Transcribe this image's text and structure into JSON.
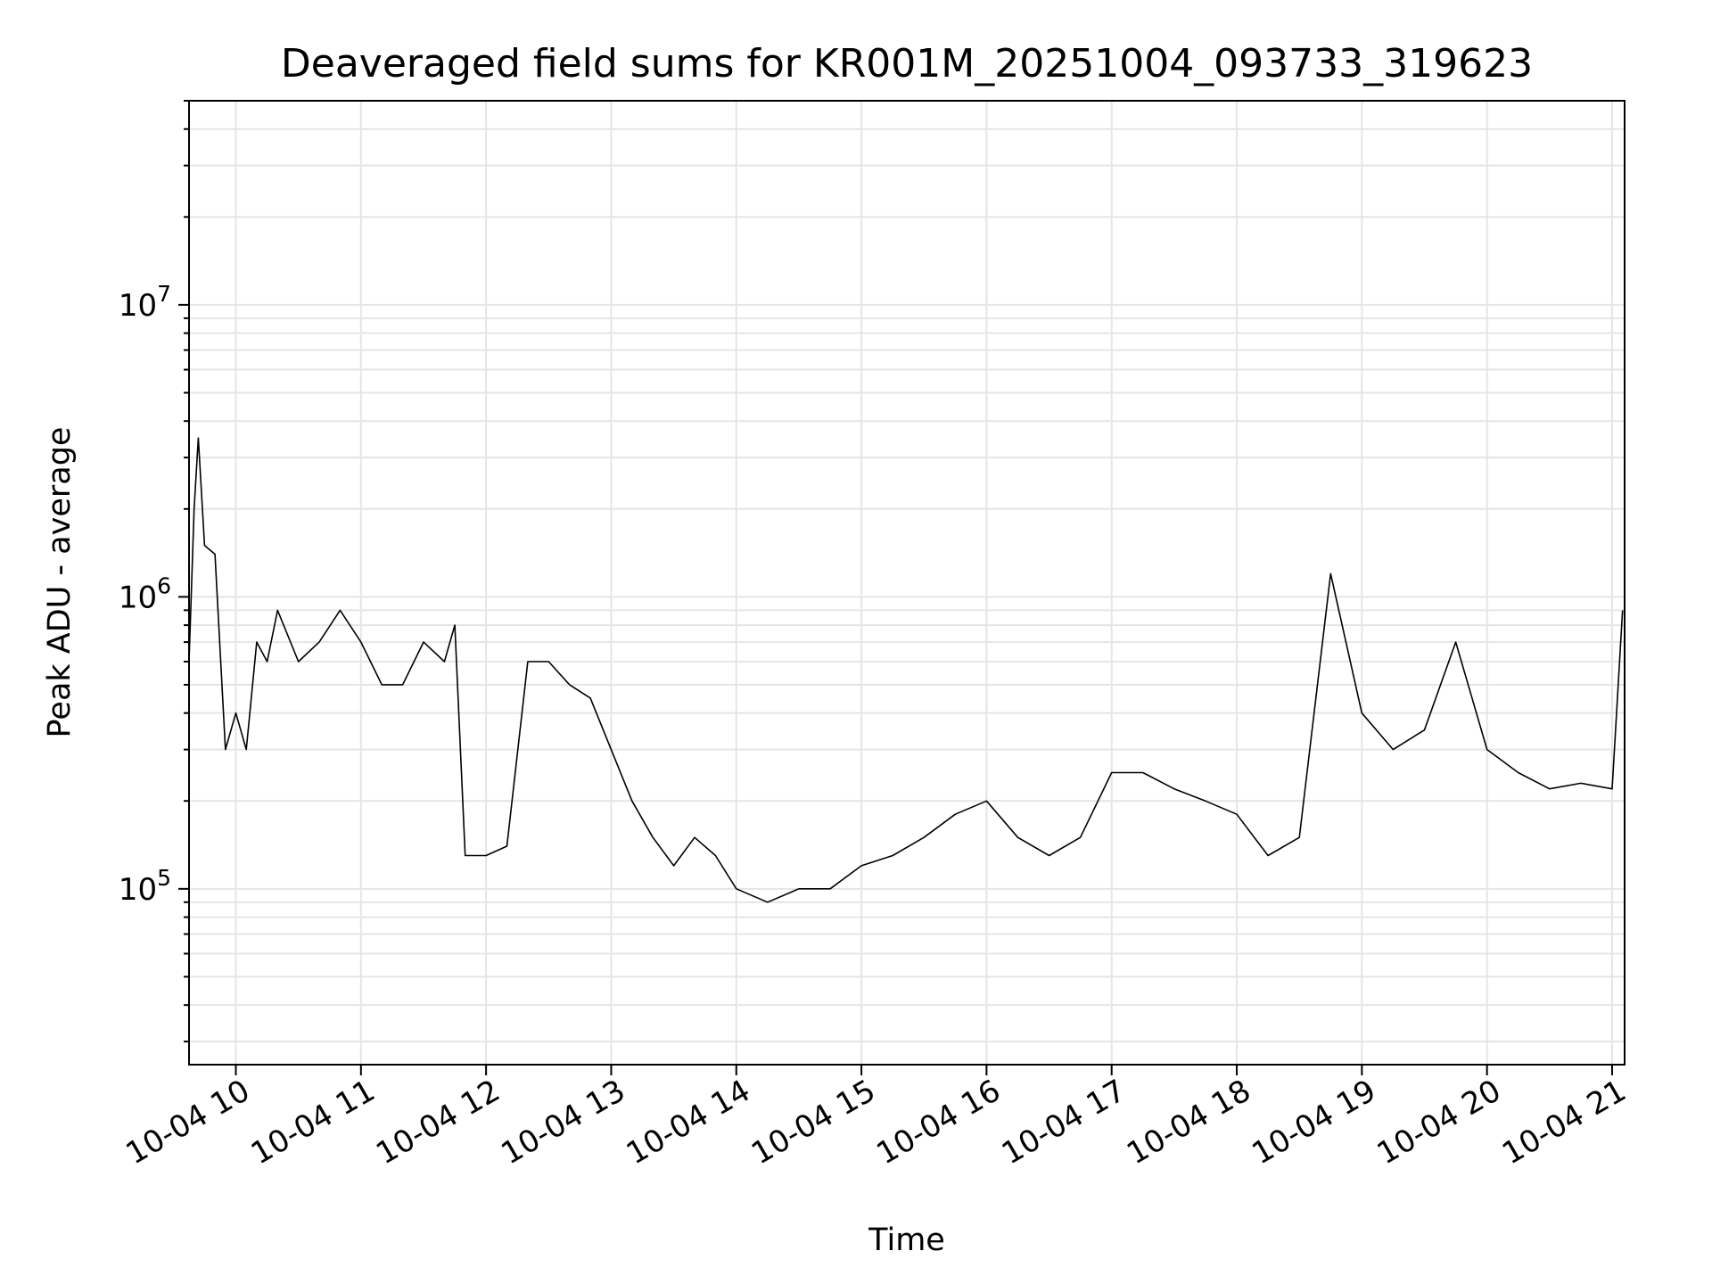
{
  "chart_data": {
    "type": "line",
    "title": "Deaveraged field sums for KR001M_20251004_093733_319623",
    "xlabel": "Time",
    "ylabel": "Peak ADU - average",
    "y_scale": "log",
    "ylim": [
      25000,
      50000000
    ],
    "xlim": [
      "2025-10-04T09:37:33",
      "2025-10-04T21:06:00"
    ],
    "grid": true,
    "legend": "none",
    "line_color": "#000000",
    "grid_color": "#e5e5e5",
    "x_ticks": [
      {
        "t": "2025-10-04T10:00:00",
        "label": "10-04 10"
      },
      {
        "t": "2025-10-04T11:00:00",
        "label": "10-04 11"
      },
      {
        "t": "2025-10-04T12:00:00",
        "label": "10-04 12"
      },
      {
        "t": "2025-10-04T13:00:00",
        "label": "10-04 13"
      },
      {
        "t": "2025-10-04T14:00:00",
        "label": "10-04 14"
      },
      {
        "t": "2025-10-04T15:00:00",
        "label": "10-04 15"
      },
      {
        "t": "2025-10-04T16:00:00",
        "label": "10-04 16"
      },
      {
        "t": "2025-10-04T17:00:00",
        "label": "10-04 17"
      },
      {
        "t": "2025-10-04T18:00:00",
        "label": "10-04 18"
      },
      {
        "t": "2025-10-04T19:00:00",
        "label": "10-04 19"
      },
      {
        "t": "2025-10-04T20:00:00",
        "label": "10-04 20"
      },
      {
        "t": "2025-10-04T21:00:00",
        "label": "10-04 21"
      }
    ],
    "y_ticks": [
      {
        "value": 100000,
        "base": "10",
        "exp": "5"
      },
      {
        "value": 1000000,
        "base": "10",
        "exp": "6"
      },
      {
        "value": 10000000,
        "base": "10",
        "exp": "7"
      }
    ],
    "series": [
      {
        "x": [
          "2025-10-04T09:37:33",
          "2025-10-04T09:40:00",
          "2025-10-04T09:42:00",
          "2025-10-04T09:45:00",
          "2025-10-04T09:50:00",
          "2025-10-04T09:55:00",
          "2025-10-04T10:00:00",
          "2025-10-04T10:05:00",
          "2025-10-04T10:10:00",
          "2025-10-04T10:15:00",
          "2025-10-04T10:20:00",
          "2025-10-04T10:30:00",
          "2025-10-04T10:40:00",
          "2025-10-04T10:50:00",
          "2025-10-04T11:00:00",
          "2025-10-04T11:10:00",
          "2025-10-04T11:20:00",
          "2025-10-04T11:30:00",
          "2025-10-04T11:40:00",
          "2025-10-04T11:45:00",
          "2025-10-04T11:50:00",
          "2025-10-04T12:00:00",
          "2025-10-04T12:10:00",
          "2025-10-04T12:20:00",
          "2025-10-04T12:30:00",
          "2025-10-04T12:40:00",
          "2025-10-04T12:50:00",
          "2025-10-04T13:00:00",
          "2025-10-04T13:10:00",
          "2025-10-04T13:20:00",
          "2025-10-04T13:30:00",
          "2025-10-04T13:40:00",
          "2025-10-04T13:50:00",
          "2025-10-04T14:00:00",
          "2025-10-04T14:15:00",
          "2025-10-04T14:30:00",
          "2025-10-04T14:45:00",
          "2025-10-04T15:00:00",
          "2025-10-04T15:15:00",
          "2025-10-04T15:30:00",
          "2025-10-04T15:45:00",
          "2025-10-04T16:00:00",
          "2025-10-04T16:15:00",
          "2025-10-04T16:30:00",
          "2025-10-04T16:45:00",
          "2025-10-04T17:00:00",
          "2025-10-04T17:15:00",
          "2025-10-04T17:30:00",
          "2025-10-04T17:45:00",
          "2025-10-04T18:00:00",
          "2025-10-04T18:15:00",
          "2025-10-04T18:30:00",
          "2025-10-04T18:45:00",
          "2025-10-04T19:00:00",
          "2025-10-04T19:15:00",
          "2025-10-04T19:30:00",
          "2025-10-04T19:45:00",
          "2025-10-04T20:00:00",
          "2025-10-04T20:15:00",
          "2025-10-04T20:30:00",
          "2025-10-04T20:45:00",
          "2025-10-04T21:00:00",
          "2025-10-04T21:05:00"
        ],
        "y": [
          600000,
          2000000,
          3500000,
          1500000,
          1400000,
          300000,
          400000,
          300000,
          700000,
          600000,
          900000,
          600000,
          700000,
          900000,
          700000,
          500000,
          500000,
          700000,
          600000,
          800000,
          130000,
          130000,
          140000,
          600000,
          600000,
          500000,
          450000,
          300000,
          200000,
          150000,
          120000,
          150000,
          130000,
          100000,
          90000,
          100000,
          100000,
          120000,
          130000,
          150000,
          180000,
          200000,
          150000,
          130000,
          150000,
          250000,
          250000,
          220000,
          200000,
          180000,
          130000,
          150000,
          1200000,
          400000,
          300000,
          350000,
          700000,
          300000,
          250000,
          220000,
          230000,
          220000,
          900000
        ]
      }
    ]
  }
}
